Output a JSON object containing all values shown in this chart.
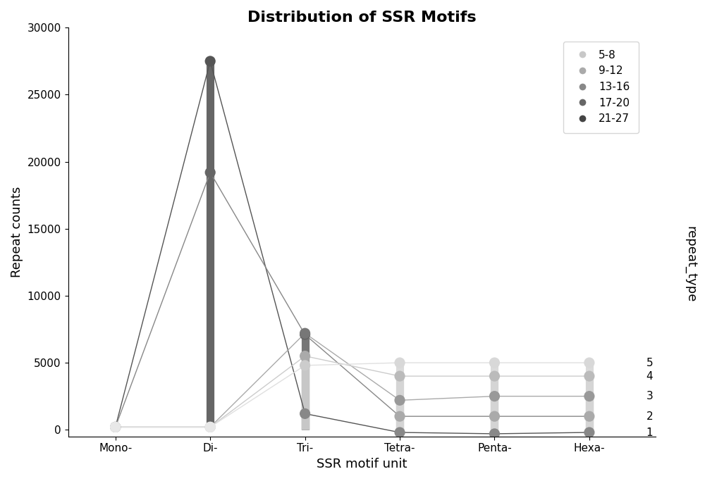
{
  "title": "Distribution of SSR Motifs",
  "xlabel": "SSR motif unit",
  "ylabel": "Repeat counts",
  "right_label": "repeat_type",
  "categories": [
    "Mono-",
    "Di-",
    "Tri-",
    "Tetra-",
    "Penta-",
    "Hexa-"
  ],
  "repeat_types": [
    1,
    2,
    3,
    4,
    5
  ],
  "ylim": [
    -500,
    30000
  ],
  "yticks": [
    0,
    5000,
    10000,
    15000,
    20000,
    25000,
    30000
  ],
  "legend_labels": [
    "5-8",
    "9-12",
    "13-16",
    "17-20",
    "21-27"
  ],
  "legend_colors": [
    "#c8c8c8",
    "#aaaaaa",
    "#888888",
    "#666666",
    "#444444"
  ],
  "data": {
    "repeat_type_1": {
      "values": [
        200,
        27500,
        1200,
        -200,
        -200,
        -200
      ],
      "color": "#555555",
      "dot_colors": [
        "#888888",
        "#555555",
        "#888888",
        "#888888",
        "#888888",
        "#888888"
      ]
    },
    "repeat_type_2": {
      "values": [
        200,
        19000,
        7100,
        1000,
        1000,
        1000
      ],
      "color": "#888888",
      "dot_colors": [
        "#aaaaaa",
        "#666666",
        "#666666",
        "#aaaaaa",
        "#aaaaaa",
        "#aaaaaa"
      ]
    },
    "repeat_type_3": {
      "values": [
        200,
        200,
        7200,
        2200,
        2500,
        2500
      ],
      "color": "#999999",
      "dot_colors": [
        "#aaaaaa",
        "#aaaaaa",
        "#666666",
        "#888888",
        "#888888",
        "#888888"
      ]
    },
    "repeat_type_4": {
      "values": [
        200,
        200,
        5200,
        4000,
        4000,
        4000
      ],
      "color": "#bbbbbb",
      "dot_colors": [
        "#cccccc",
        "#cccccc",
        "#888888",
        "#aaaaaa",
        "#aaaaaa",
        "#aaaaaa"
      ]
    },
    "repeat_type_5": {
      "values": [
        200,
        200,
        4500,
        5000,
        5000,
        5000
      ],
      "color": "#dddddd",
      "dot_colors": [
        "#dddddd",
        "#dddddd",
        "#aaaaaa",
        "#cccccc",
        "#cccccc",
        "#cccccc"
      ]
    }
  },
  "background_color": "#ffffff",
  "title_fontsize": 16,
  "label_fontsize": 13,
  "tick_fontsize": 11
}
